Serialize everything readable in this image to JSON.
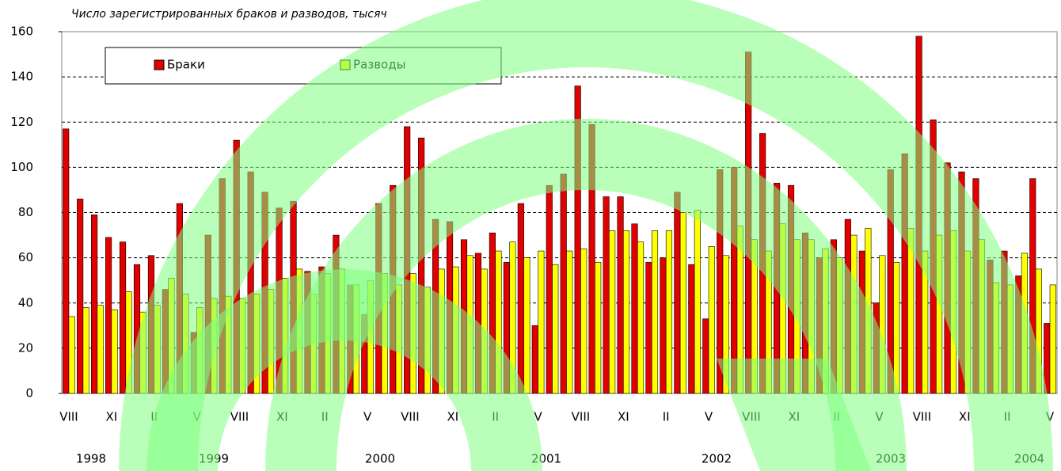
{
  "chart_data": {
    "type": "bar",
    "title": "Число зарегистрированных браков и разводов, тысяч",
    "categories": [
      "VIII",
      null,
      null,
      "XI",
      null,
      null,
      "II",
      null,
      null,
      "V",
      null,
      null,
      "VIII",
      null,
      null,
      "XI",
      null,
      null,
      "II",
      null,
      null,
      "V",
      null,
      null,
      "VIII",
      null,
      null,
      "XI",
      null,
      null,
      "II",
      null,
      null,
      "V",
      null,
      null,
      "VIII",
      null,
      null,
      "XI",
      null,
      null,
      "II",
      null,
      null,
      "V",
      null,
      null,
      "VIII",
      null,
      null,
      "XI",
      null,
      null,
      "II",
      null,
      null,
      "V",
      null,
      null,
      "VIII",
      null,
      null,
      "XI",
      null,
      null,
      "II",
      null,
      null,
      "V"
    ],
    "years": [
      "1998",
      "1999",
      "2000",
      "2001",
      "2002",
      "2003",
      "2004"
    ],
    "series": [
      {
        "name": "Браки",
        "color": "#e00000",
        "values": [
          117,
          86,
          79,
          69,
          67,
          57,
          61,
          46,
          84,
          27,
          70,
          95,
          112,
          98,
          89,
          82,
          85,
          54,
          56,
          70,
          48,
          35,
          84,
          92,
          118,
          113,
          77,
          76,
          68,
          62,
          71,
          58,
          84,
          30,
          92,
          97,
          136,
          119,
          87,
          87,
          75,
          58,
          60,
          89,
          57,
          33,
          99,
          100,
          151,
          115,
          93,
          92,
          71,
          60,
          68,
          77,
          63,
          40,
          99,
          106,
          158,
          121,
          102,
          98,
          95,
          59,
          63,
          52,
          95,
          31
        ]
      },
      {
        "name": "Разводы",
        "color": "#ffff00",
        "values": [
          34,
          38,
          39,
          37,
          45,
          36,
          39,
          51,
          44,
          38,
          42,
          43,
          42,
          44,
          46,
          51,
          55,
          44,
          53,
          55,
          48,
          50,
          53,
          48,
          53,
          47,
          55,
          56,
          61,
          55,
          63,
          67,
          60,
          63,
          57,
          63,
          64,
          58,
          72,
          72,
          67,
          72,
          72,
          80,
          81,
          65,
          61,
          74,
          68,
          63,
          75,
          68,
          68,
          64,
          60,
          70,
          73,
          61,
          58,
          73,
          63,
          70,
          72,
          63,
          68,
          49,
          48,
          62,
          55,
          48
        ]
      }
    ],
    "ylim": [
      0,
      160
    ],
    "yticks": [
      0,
      20,
      40,
      60,
      80,
      100,
      120,
      140,
      160
    ],
    "grid": true
  }
}
